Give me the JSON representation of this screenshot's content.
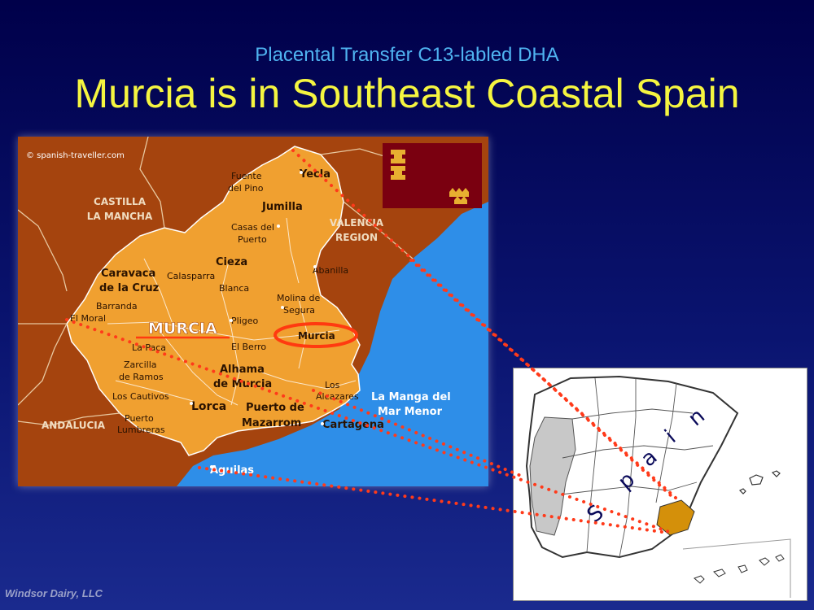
{
  "slide": {
    "subtitle": "Placental Transfer C13-labled DHA",
    "title": "Murcia is in Southeast Coastal Spain",
    "footer": "Windsor Dairy, LLC"
  },
  "region_map": {
    "credit": "© spanish-traveller.com",
    "neighbors": {
      "castilla_1": "CASTILLA",
      "castilla_2": "LA MANCHA",
      "valencia_1": "VALENCIA",
      "valencia_2": "REGION",
      "andalucia": "ANDALUCIA"
    },
    "region_label": "MURCIA",
    "towns": {
      "yecla": "Yecla",
      "fuente_1": "Fuente",
      "fuente_2": "del Pino",
      "jumilla": "Jumilla",
      "casas_1": "Casas del",
      "casas_2": "Puerto",
      "abanilla": "Abanilla",
      "cieza": "Cieza",
      "calasparra": "Calasparra",
      "blanca": "Blanca",
      "caravaca_1": "Caravaca",
      "caravaca_2": "de la Cruz",
      "barranda": "Barranda",
      "el_moral": "El Moral",
      "molina_1": "Molina de",
      "molina_2": "Segura",
      "pligeo": "Pligeo",
      "murcia_city": "Murcia",
      "la_paca": "La Paca",
      "el_berro": "El Berro",
      "zarcilla_1": "Zarcilla",
      "zarcilla_2": "de Ramos",
      "alhama_1": "Alhama",
      "alhama_2": "de Murcia",
      "los_alcazares_1": "Los",
      "los_alcazares_2": "Alcazares",
      "la_manga_1": "La Manga del",
      "la_manga_2": "Mar Menor",
      "los_cautivos": "Los Cautivos",
      "lorca": "Lorca",
      "puerto_1": "Puerto de",
      "puerto_2": "Mazarrom",
      "cartagena": "Cartagena",
      "lumbreras_1": "Puerto",
      "lumbreras_2": "Lumbreras",
      "aguilas": "Aguilas"
    }
  },
  "spain_map": {
    "letters": [
      "S",
      "p",
      "a",
      "i",
      "n"
    ]
  },
  "colors": {
    "region_fill": "#f0a030",
    "neighbor_fill": "#a5440e",
    "sea": "#2e8ee8",
    "flag": "#7a0010",
    "dots": "#ff3a1a",
    "highlight_ring": "#ff3a10",
    "title": "#f5f540",
    "subtitle": "#4fb3f0"
  }
}
